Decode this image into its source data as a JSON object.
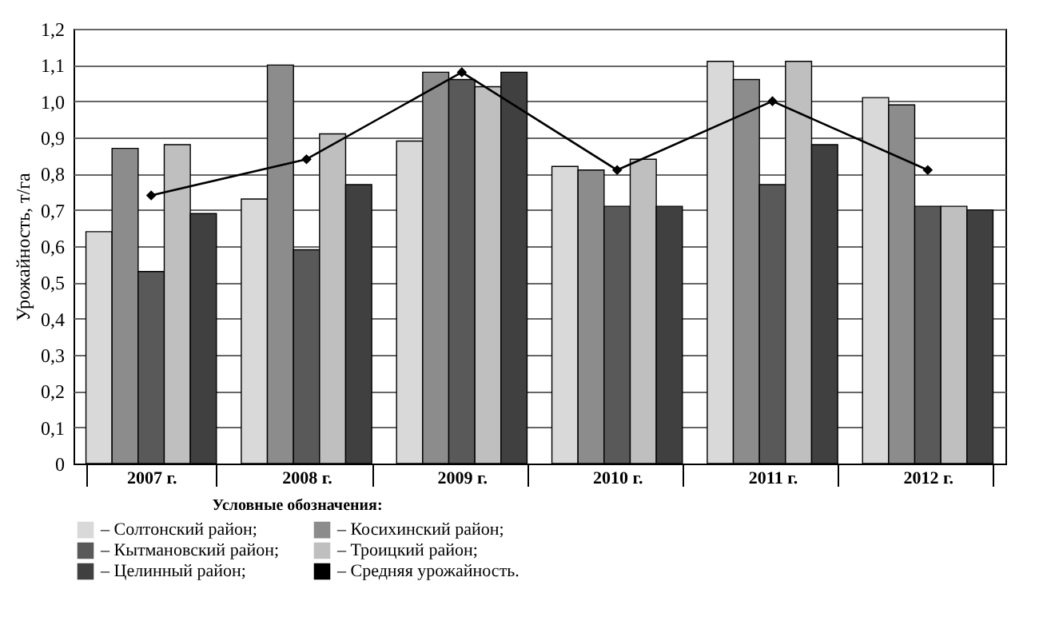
{
  "chart_data": {
    "type": "bar",
    "ylabel": "Урожайность, т/га",
    "legend_title": "Условные обозначения:",
    "categories": [
      "2007 г.",
      "2008 г.",
      "2009 г.",
      "2010 г.",
      "2011 г.",
      "2012 г."
    ],
    "series": [
      {
        "name": "– Солтонский район;",
        "color": "#d9d9d9",
        "values": [
          0.64,
          0.73,
          0.89,
          0.82,
          1.11,
          1.01
        ]
      },
      {
        "name": "– Косихинский район;",
        "color": "#8c8c8c",
        "values": [
          0.87,
          1.1,
          1.08,
          0.81,
          1.06,
          0.99
        ]
      },
      {
        "name": "– Кытмановский район;",
        "color": "#595959",
        "values": [
          0.53,
          0.59,
          1.06,
          0.71,
          0.77,
          0.71
        ]
      },
      {
        "name": "– Троицкий район;",
        "color": "#bfbfbf",
        "values": [
          0.88,
          0.91,
          1.04,
          0.84,
          1.11,
          0.71
        ]
      },
      {
        "name": "– Целинный район;",
        "color": "#404040",
        "values": [
          0.69,
          0.77,
          1.08,
          0.71,
          0.88,
          0.7
        ]
      },
      {
        "name": "– Средняя урожайность.",
        "type": "line",
        "color": "#000000",
        "values": [
          0.74,
          0.84,
          1.08,
          0.81,
          1.0,
          0.81
        ]
      }
    ],
    "ylim": [
      0,
      1.2
    ],
    "yticks": [
      {
        "value": 0,
        "label": "0"
      },
      {
        "value": 0.1,
        "label": "0,1"
      },
      {
        "value": 0.2,
        "label": "0,2"
      },
      {
        "value": 0.3,
        "label": "0,3"
      },
      {
        "value": 0.4,
        "label": "0,4"
      },
      {
        "value": 0.5,
        "label": "0,5"
      },
      {
        "value": 0.6,
        "label": "0,6"
      },
      {
        "value": 0.7,
        "label": "0,7"
      },
      {
        "value": 0.8,
        "label": "0,8"
      },
      {
        "value": 0.9,
        "label": "0,9"
      },
      {
        "value": 1.0,
        "label": "1,0"
      },
      {
        "value": 1.1,
        "label": "1,1"
      },
      {
        "value": 1.2,
        "label": "1,2"
      }
    ],
    "grid": "y",
    "legend": "bottom",
    "marker": "diamond"
  }
}
